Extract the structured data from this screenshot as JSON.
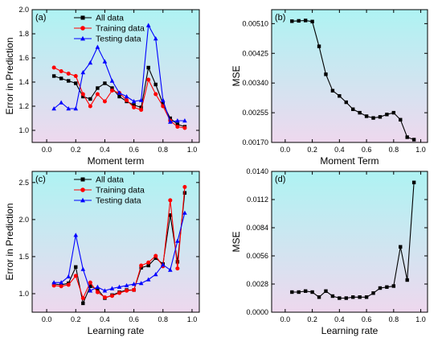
{
  "colors": {
    "all": "#000000",
    "training": "#ff0000",
    "testing": "#0000ff",
    "mse": "#000000",
    "bg_top": "#aef3f3",
    "bg_bottom": "#eed8ee"
  },
  "chart_data": [
    {
      "id": "a",
      "panel_label": "(a)",
      "type": "line",
      "xlabel": "Moment term",
      "ylabel": "Error in Prediction",
      "xlim": [
        -0.1,
        1.05
      ],
      "ylim": [
        0.9,
        2.0
      ],
      "xticks": [
        0.0,
        0.2,
        0.4,
        0.6,
        0.8,
        1.0
      ],
      "xtick_labels": [
        "0.0",
        "0.2",
        "0.4",
        "0.6",
        "0.8",
        "1.0"
      ],
      "yticks": [
        1.0,
        1.2,
        1.4,
        1.6,
        1.8,
        2.0
      ],
      "ytick_labels": [
        "1.0",
        "1.2",
        "1.4",
        "1.6",
        "1.8",
        "2.0"
      ],
      "legend": "top",
      "x": [
        0.05,
        0.1,
        0.15,
        0.2,
        0.25,
        0.3,
        0.35,
        0.4,
        0.45,
        0.5,
        0.55,
        0.6,
        0.65,
        0.7,
        0.75,
        0.8,
        0.85,
        0.9,
        0.95
      ],
      "series": [
        {
          "name": "All data",
          "color_key": "all",
          "marker": "square",
          "values": [
            1.45,
            1.43,
            1.41,
            1.39,
            1.28,
            1.26,
            1.35,
            1.39,
            1.35,
            1.28,
            1.24,
            1.21,
            1.19,
            1.52,
            1.38,
            1.22,
            1.1,
            1.05,
            1.03
          ]
        },
        {
          "name": "Training data",
          "color_key": "training",
          "marker": "circle",
          "values": [
            1.52,
            1.49,
            1.47,
            1.45,
            1.3,
            1.2,
            1.3,
            1.24,
            1.33,
            1.31,
            1.25,
            1.19,
            1.17,
            1.42,
            1.3,
            1.2,
            1.08,
            1.03,
            1.02
          ]
        },
        {
          "name": "Testing data",
          "color_key": "testing",
          "marker": "triangle",
          "values": [
            1.18,
            1.23,
            1.18,
            1.18,
            1.48,
            1.56,
            1.69,
            1.57,
            1.41,
            1.31,
            1.28,
            1.24,
            1.25,
            1.87,
            1.76,
            1.25,
            1.07,
            1.08,
            1.08
          ]
        }
      ]
    },
    {
      "id": "b",
      "panel_label": "(b)",
      "type": "line",
      "xlabel": "Moment Term",
      "ylabel": "MSE",
      "xlim": [
        -0.1,
        1.05
      ],
      "ylim": [
        0.0017,
        0.0055
      ],
      "xticks": [
        0.0,
        0.2,
        0.4,
        0.6,
        0.8,
        1.0
      ],
      "xtick_labels": [
        "0.0",
        "0.2",
        "0.4",
        "0.6",
        "0.8",
        "1.0"
      ],
      "yticks": [
        0.0017,
        0.00255,
        0.0034,
        0.00425,
        0.0051
      ],
      "ytick_labels": [
        "0.00170",
        "0.00255",
        "0.00340",
        "0.00425",
        "0.00510"
      ],
      "x": [
        0.05,
        0.1,
        0.15,
        0.2,
        0.25,
        0.3,
        0.35,
        0.4,
        0.45,
        0.5,
        0.55,
        0.6,
        0.65,
        0.7,
        0.75,
        0.8,
        0.85,
        0.9,
        0.95
      ],
      "series": [
        {
          "color_key": "mse",
          "marker": "square",
          "values": [
            0.00517,
            0.00518,
            0.00519,
            0.00516,
            0.00445,
            0.00365,
            0.00318,
            0.00303,
            0.00285,
            0.00265,
            0.00255,
            0.00245,
            0.0024,
            0.00243,
            0.0025,
            0.00255,
            0.00235,
            0.00185,
            0.00178
          ]
        }
      ]
    },
    {
      "id": "c",
      "panel_label": "(c)",
      "type": "line",
      "xlabel": "Learning rate",
      "ylabel": "Error in Prediction",
      "xlim": [
        -0.1,
        1.05
      ],
      "ylim": [
        0.75,
        2.65
      ],
      "xticks": [
        0.0,
        0.2,
        0.4,
        0.6,
        0.8,
        1.0
      ],
      "xtick_labels": [
        "0.0",
        "0.2",
        "0.4",
        "0.6",
        "0.8",
        "1.0"
      ],
      "yticks": [
        1.0,
        1.5,
        2.0,
        2.5
      ],
      "ytick_labels": [
        "1.0",
        "1.5",
        "2.0",
        "2.5"
      ],
      "legend": "top",
      "x": [
        0.05,
        0.1,
        0.15,
        0.2,
        0.25,
        0.3,
        0.35,
        0.4,
        0.45,
        0.5,
        0.55,
        0.6,
        0.65,
        0.7,
        0.75,
        0.8,
        0.85,
        0.9,
        0.95
      ],
      "series": [
        {
          "name": "All data",
          "color_key": "all",
          "marker": "square",
          "values": [
            1.13,
            1.12,
            1.14,
            1.36,
            0.87,
            1.1,
            1.06,
            0.94,
            0.98,
            1.02,
            1.05,
            1.05,
            1.35,
            1.38,
            1.48,
            1.4,
            2.06,
            1.43,
            2.36
          ]
        },
        {
          "name": "Training data",
          "color_key": "training",
          "marker": "circle",
          "values": [
            1.11,
            1.1,
            1.12,
            1.24,
            0.94,
            1.15,
            1.02,
            0.95,
            0.97,
            1.01,
            1.04,
            1.05,
            1.38,
            1.42,
            1.51,
            1.37,
            2.26,
            1.34,
            2.44
          ]
        },
        {
          "name": "Testing data",
          "color_key": "testing",
          "marker": "triangle",
          "values": [
            1.15,
            1.15,
            1.23,
            1.79,
            1.33,
            1.04,
            1.09,
            1.04,
            1.07,
            1.09,
            1.11,
            1.13,
            1.14,
            1.19,
            1.26,
            1.39,
            1.32,
            1.71,
            2.09
          ]
        }
      ]
    },
    {
      "id": "d",
      "panel_label": "(d)",
      "type": "line",
      "xlabel": "Learning rate",
      "ylabel": "MSE",
      "xlim": [
        -0.1,
        1.05
      ],
      "ylim": [
        0.0,
        0.014
      ],
      "xticks": [
        0.0,
        0.2,
        0.4,
        0.6,
        0.8,
        1.0
      ],
      "xtick_labels": [
        "0.0",
        "0.2",
        "0.4",
        "0.6",
        "0.8",
        "1.0"
      ],
      "yticks": [
        0.0,
        0.0028,
        0.0056,
        0.0084,
        0.0112,
        0.014
      ],
      "ytick_labels": [
        "0.0000",
        "0.0028",
        "0.0056",
        "0.0084",
        "0.0112",
        "0.0140"
      ],
      "x": [
        0.05,
        0.1,
        0.15,
        0.2,
        0.25,
        0.3,
        0.35,
        0.4,
        0.45,
        0.5,
        0.55,
        0.6,
        0.65,
        0.7,
        0.75,
        0.8,
        0.85,
        0.9,
        0.95
      ],
      "series": [
        {
          "color_key": "mse",
          "marker": "square",
          "values": [
            0.002,
            0.002,
            0.0021,
            0.002,
            0.0015,
            0.0021,
            0.0016,
            0.0014,
            0.0014,
            0.0015,
            0.0015,
            0.0015,
            0.0019,
            0.0024,
            0.0025,
            0.0026,
            0.0065,
            0.0032,
            0.0129
          ]
        }
      ]
    }
  ]
}
